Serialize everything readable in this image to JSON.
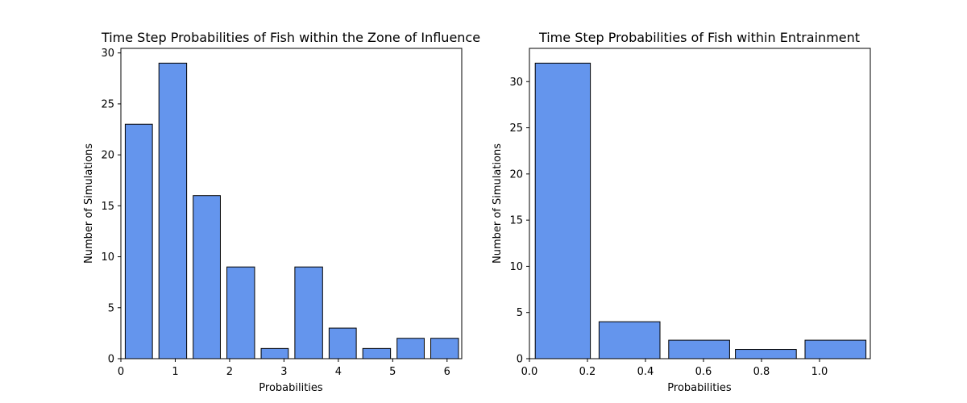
{
  "colors": {
    "bar_fill": "#6495ED",
    "bar_edge": "#000000",
    "axes": "#000000",
    "background": "#ffffff"
  },
  "chart_data": [
    {
      "type": "bar",
      "title": "Time Step Probabilities of Fish within the Zone of Influence",
      "xlabel": "Probabilities",
      "ylabel": "Number of Simulations",
      "xlim": [
        0,
        6.27
      ],
      "ylim": [
        0,
        30.45
      ],
      "xticks": [
        0,
        1,
        2,
        3,
        4,
        5,
        6
      ],
      "yticks": [
        0,
        5,
        10,
        15,
        20,
        25,
        30
      ],
      "grid": false,
      "bins": [
        {
          "left": 0.08,
          "right": 0.58,
          "value": 23
        },
        {
          "left": 0.7,
          "right": 1.21,
          "value": 29
        },
        {
          "left": 1.33,
          "right": 1.83,
          "value": 16
        },
        {
          "left": 1.95,
          "right": 2.46,
          "value": 9
        },
        {
          "left": 2.58,
          "right": 3.08,
          "value": 1
        },
        {
          "left": 3.2,
          "right": 3.71,
          "value": 9
        },
        {
          "left": 3.83,
          "right": 4.33,
          "value": 3
        },
        {
          "left": 4.45,
          "right": 4.96,
          "value": 1
        },
        {
          "left": 5.08,
          "right": 5.58,
          "value": 2
        },
        {
          "left": 5.7,
          "right": 6.21,
          "value": 2
        }
      ]
    },
    {
      "type": "bar",
      "title": "Time Step Probabilities of Fish within Entrainment",
      "xlabel": "Probabilities",
      "ylabel": "Number of Simulations",
      "xlim": [
        0,
        1.175
      ],
      "ylim": [
        0,
        33.6
      ],
      "xticks": [
        "0.0",
        "0.2",
        "0.4",
        "0.6",
        "0.8",
        "1.0"
      ],
      "yticks": [
        0,
        5,
        10,
        15,
        20,
        25,
        30
      ],
      "grid": false,
      "bins": [
        {
          "left": 0.02,
          "right": 0.21,
          "value": 32
        },
        {
          "left": 0.24,
          "right": 0.45,
          "value": 4
        },
        {
          "left": 0.48,
          "right": 0.69,
          "value": 2
        },
        {
          "left": 0.71,
          "right": 0.92,
          "value": 1
        },
        {
          "left": 0.95,
          "right": 1.16,
          "value": 2
        }
      ]
    }
  ]
}
